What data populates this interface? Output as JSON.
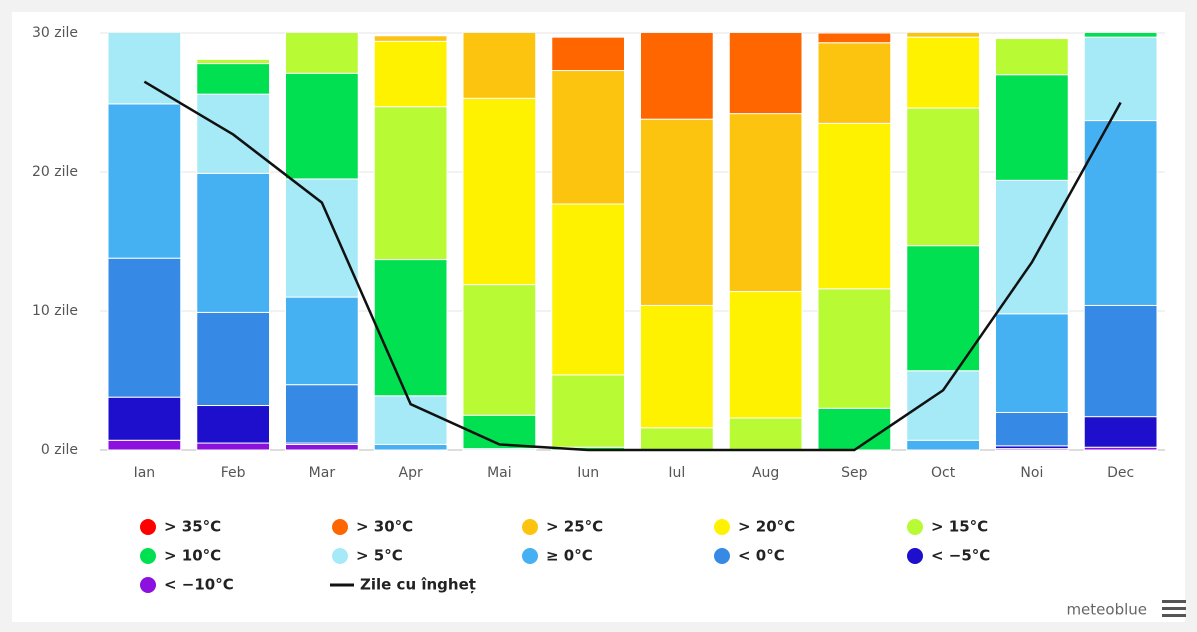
{
  "chart_data": {
    "type": "bar",
    "stacked": true,
    "categories": [
      "Ian",
      "Feb",
      "Mar",
      "Apr",
      "Mai",
      "Iun",
      "Iul",
      "Aug",
      "Sep",
      "Oct",
      "Noi",
      "Dec"
    ],
    "ylim": [
      0,
      30
    ],
    "yticks": [
      {
        "value": 0,
        "label": "0 zile"
      },
      {
        "value": 10,
        "label": "10 zile"
      },
      {
        "value": 20,
        "label": "20 zile"
      },
      {
        "value": 30,
        "label": "30 zile"
      }
    ],
    "grid": true,
    "series": [
      {
        "name": "> 35°C",
        "color": "#ff0000",
        "values": [
          0,
          0,
          0,
          0,
          0,
          0,
          0,
          0,
          0,
          0,
          0,
          0
        ]
      },
      {
        "name": "> 30°C",
        "color": "#ff6600",
        "values": [
          0,
          0,
          0,
          0,
          0,
          2.4,
          7.2,
          6.8,
          0.7,
          0,
          0,
          0
        ]
      },
      {
        "name": "> 25°C",
        "color": "#fcc40f",
        "values": [
          0,
          0,
          0,
          0.4,
          5.7,
          9.6,
          13.4,
          12.8,
          5.8,
          1.3,
          0,
          0
        ]
      },
      {
        "name": "> 20°C",
        "color": "#fff200",
        "values": [
          0,
          0,
          0,
          4.7,
          13.4,
          12.3,
          8.8,
          9.1,
          11.9,
          5.1,
          0,
          0
        ]
      },
      {
        "name": "> 15°C",
        "color": "#b8fa33",
        "values": [
          0,
          0.3,
          3.9,
          11.0,
          9.4,
          5.2,
          1.6,
          2.3,
          8.6,
          9.9,
          2.6,
          0
        ]
      },
      {
        "name": "> 10°C",
        "color": "#00e050",
        "values": [
          0,
          2.2,
          7.6,
          9.8,
          2.4,
          0.2,
          0,
          0,
          3.0,
          9.0,
          7.6,
          1.3
        ]
      },
      {
        "name": "> 5°C",
        "color": "#a6eaf7",
        "values": [
          6.0,
          5.7,
          8.5,
          3.5,
          0.1,
          0,
          0,
          0,
          0,
          5.0,
          9.6,
          6.0
        ]
      },
      {
        "name": "≥ 0°C",
        "color": "#45b0f2",
        "values": [
          11.1,
          10.0,
          6.3,
          0.4,
          0,
          0,
          0,
          0,
          0,
          0.7,
          7.1,
          13.3
        ]
      },
      {
        "name": "< 0°C",
        "color": "#368ae6",
        "values": [
          10.0,
          6.7,
          4.2,
          0,
          0,
          0,
          0,
          0,
          0,
          0,
          2.4,
          8.0
        ]
      },
      {
        "name": "< −5°C",
        "color": "#1d0fcc",
        "values": [
          3.1,
          2.7,
          0.1,
          0,
          0,
          0,
          0,
          0,
          0,
          0,
          0.2,
          2.2
        ]
      },
      {
        "name": "< −10°C",
        "color": "#8c10de",
        "values": [
          0.7,
          0.5,
          0.4,
          0,
          0,
          0,
          0,
          0,
          0,
          0,
          0.1,
          0.2
        ]
      },
      {
        "name": "Zile cu îngheț",
        "color": "#111111",
        "type": "line",
        "values": [
          26.5,
          22.7,
          17.8,
          3.3,
          0.4,
          0,
          0,
          0,
          0,
          4.3,
          13.5,
          25.0
        ]
      }
    ],
    "credit": "meteoblue"
  }
}
